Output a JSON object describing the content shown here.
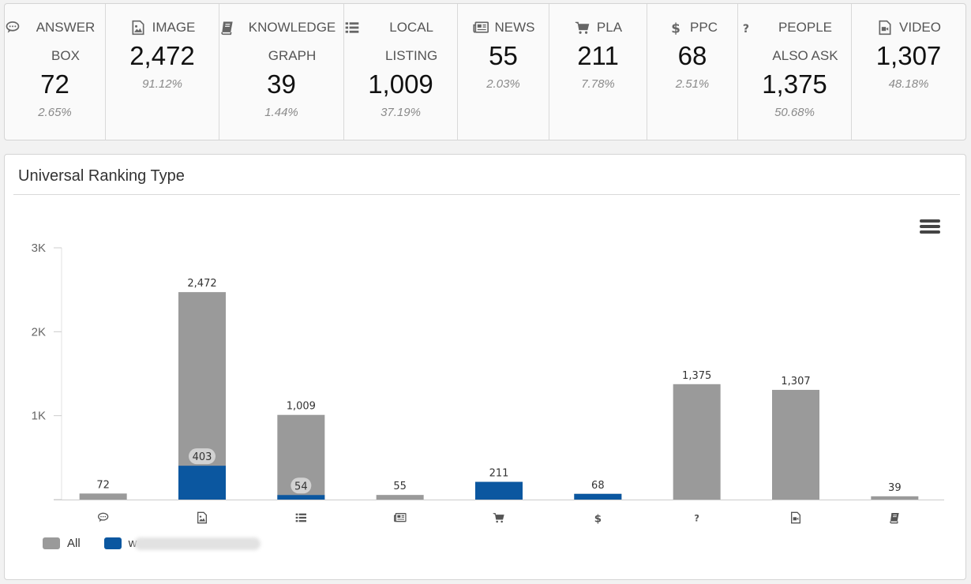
{
  "stats": [
    {
      "label": "ANSWER BOX",
      "value": "72",
      "pct": "2.65%",
      "icon": "comment-icon"
    },
    {
      "label": "IMAGE",
      "value": "2,472",
      "pct": "91.12%",
      "icon": "image-icon"
    },
    {
      "label": "KNOWLEDGE GRAPH",
      "value": "39",
      "pct": "1.44%",
      "icon": "book-icon"
    },
    {
      "label": "LOCAL LISTING",
      "value": "1,009",
      "pct": "37.19%",
      "icon": "list-icon"
    },
    {
      "label": "NEWS",
      "value": "55",
      "pct": "2.03%",
      "icon": "newspaper-icon"
    },
    {
      "label": "PLA",
      "value": "211",
      "pct": "7.78%",
      "icon": "cart-icon"
    },
    {
      "label": "PPC",
      "value": "68",
      "pct": "2.51%",
      "icon": "dollar-icon"
    },
    {
      "label": "PEOPLE ALSO ASK",
      "value": "1,375",
      "pct": "50.68%",
      "icon": "question-icon"
    },
    {
      "label": "VIDEO",
      "value": "1,307",
      "pct": "48.18%",
      "icon": "video-file-icon"
    }
  ],
  "chart_title": "Universal Ranking Type",
  "legend": [
    {
      "name": "All",
      "color": "#9a9a9a"
    },
    {
      "name": "w",
      "color": "#0b57a0",
      "obscured": true
    }
  ],
  "chart_data": {
    "type": "bar",
    "title": "Universal Ranking Type",
    "categories": [
      "comment-icon",
      "image-icon",
      "list-icon",
      "newspaper-icon",
      "cart-icon",
      "dollar-icon",
      "question-icon",
      "video-file-icon",
      "book-icon"
    ],
    "series": [
      {
        "name": "All",
        "color": "#9a9a9a",
        "values": [
          72,
          2472,
          1009,
          55,
          211,
          68,
          1375,
          1307,
          39
        ]
      },
      {
        "name": "w",
        "color": "#0b57a0",
        "values": [
          0,
          403,
          54,
          0,
          211,
          68,
          0,
          0,
          0
        ]
      }
    ],
    "data_labels": [
      "72",
      "2,472",
      "1,009",
      "55",
      "211",
      "68",
      "1,375",
      "1,307",
      "39"
    ],
    "inner_labels": [
      "",
      "403",
      "54",
      "",
      "",
      "",
      "",
      "",
      ""
    ],
    "yticks": [
      "",
      "1K",
      "2K",
      "3K"
    ],
    "ylim": [
      0,
      3000
    ],
    "xlabel": "",
    "ylabel": "",
    "legend_position": "bottom-left",
    "grid": false
  }
}
